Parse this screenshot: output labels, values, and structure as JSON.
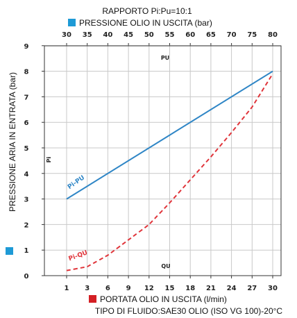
{
  "chart_data": {
    "type": "line",
    "title": "RAPPORTO Pi:Pu=10:1",
    "top_axis": {
      "label": "PRESSIONE OLIO IN USCITA (bar)",
      "ticks": [
        "30",
        "35",
        "40",
        "45",
        "50",
        "55",
        "60",
        "65",
        "70",
        "75",
        "80"
      ],
      "marker_color": "#1e9ad6"
    },
    "bottom_axis": {
      "label": "PORTATA OLIO IN USCITA (l/min)",
      "ticks": [
        "1",
        "3",
        "6",
        "9",
        "12",
        "15",
        "18",
        "21",
        "24",
        "27",
        "30"
      ],
      "marker_color": "#d41f24"
    },
    "left_axis": {
      "label": "PRESSIONE ARIA IN ENTRATA (bar)",
      "ticks": [
        "0",
        "1",
        "2",
        "3",
        "4",
        "5",
        "6",
        "7",
        "8",
        "9"
      ],
      "ylim": [
        0,
        9
      ],
      "marker_color": "#1e9ad6"
    },
    "note": "TIPO DI FLUIDO:SAE30 OLIO (ISO VG 100)-20°C",
    "inner_labels": {
      "pu": "PU",
      "qu": "QU",
      "pi": "Pi"
    },
    "series": [
      {
        "name": "Pi-PU",
        "color": "#2f86c6",
        "style": "solid",
        "x_axis": "top",
        "x": [
          30,
          80
        ],
        "y": [
          3.0,
          8.0
        ]
      },
      {
        "name": "Pi-QU",
        "color": "#e0343a",
        "style": "dashed",
        "x_axis": "bottom",
        "x": [
          1,
          3,
          6,
          9,
          12,
          15,
          18,
          21,
          24,
          27,
          30
        ],
        "y": [
          0.2,
          0.35,
          0.8,
          1.4,
          2.0,
          2.85,
          3.75,
          4.65,
          5.6,
          6.6,
          7.9
        ]
      }
    ]
  }
}
